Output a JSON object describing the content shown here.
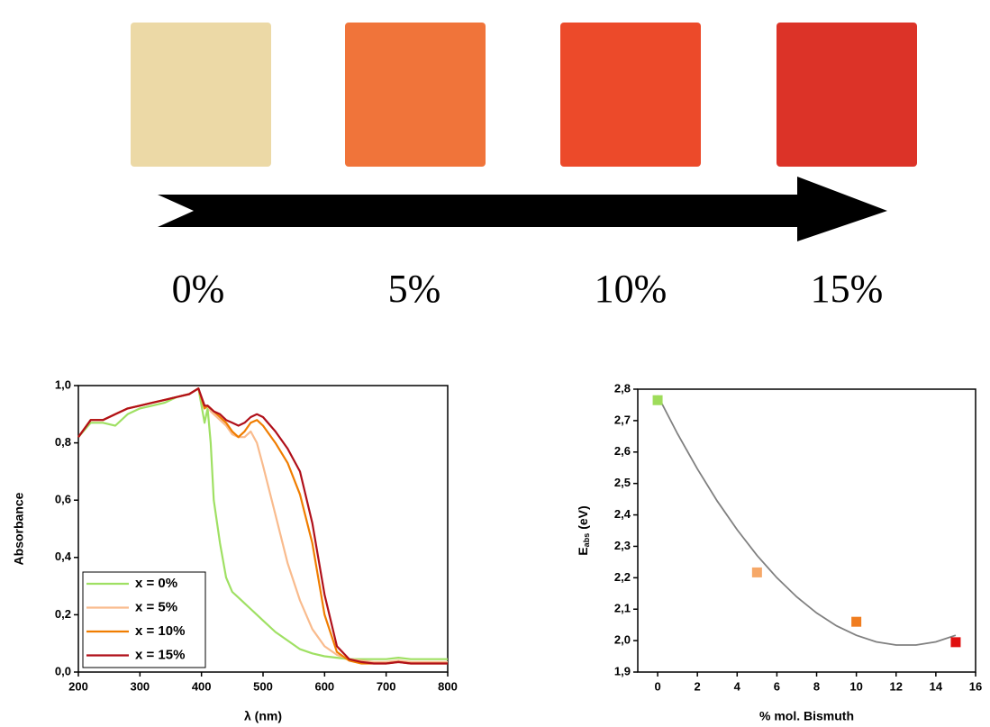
{
  "photo_panel": {
    "labels": [
      "0%",
      "5%",
      "10%",
      "15%"
    ],
    "colors": [
      "#ecd9a6",
      "#f0743a",
      "#ec4a2a",
      "#dc3328"
    ]
  },
  "chart_data": [
    {
      "type": "line",
      "xlabel": "λ (nm)",
      "ylabel": "Absorbance",
      "x": [
        200,
        220,
        240,
        260,
        280,
        300,
        320,
        340,
        360,
        380,
        395,
        405,
        410,
        415,
        420,
        430,
        440,
        450,
        460,
        470,
        480,
        490,
        500,
        520,
        540,
        560,
        580,
        600,
        620,
        640,
        660,
        680,
        700,
        720,
        740,
        760,
        780,
        800
      ],
      "xlim": [
        200,
        800
      ],
      "xticks": [
        200,
        300,
        400,
        500,
        600,
        700,
        800
      ],
      "ylim": [
        0,
        1
      ],
      "yticks": [
        {
          "value": 0,
          "label": "0,0"
        },
        {
          "value": 0.2,
          "label": "0,2"
        },
        {
          "value": 0.4,
          "label": "0,4"
        },
        {
          "value": 0.6,
          "label": "0,6"
        },
        {
          "value": 0.8,
          "label": "0,8"
        },
        {
          "value": 1,
          "label": "1,0"
        }
      ],
      "legend": "lower left",
      "series": [
        {
          "name": "x = 0%",
          "color": "#9fe063",
          "values": [
            0.82,
            0.87,
            0.87,
            0.86,
            0.9,
            0.92,
            0.93,
            0.94,
            0.96,
            0.97,
            0.99,
            0.87,
            0.92,
            0.8,
            0.6,
            0.45,
            0.33,
            0.28,
            0.26,
            0.24,
            0.22,
            0.2,
            0.18,
            0.14,
            0.11,
            0.08,
            0.065,
            0.055,
            0.05,
            0.045,
            0.045,
            0.045,
            0.045,
            0.05,
            0.045,
            0.045,
            0.045,
            0.045
          ]
        },
        {
          "name": "x = 5%",
          "color": "#f9bb8d",
          "values": [
            0.82,
            0.88,
            0.88,
            0.9,
            0.92,
            0.93,
            0.94,
            0.95,
            0.96,
            0.97,
            0.99,
            0.92,
            0.93,
            0.91,
            0.9,
            0.88,
            0.86,
            0.83,
            0.82,
            0.82,
            0.84,
            0.8,
            0.72,
            0.55,
            0.38,
            0.25,
            0.15,
            0.09,
            0.06,
            0.045,
            0.04,
            0.035,
            0.035,
            0.04,
            0.035,
            0.035,
            0.035,
            0.035
          ]
        },
        {
          "name": "x = 10%",
          "color": "#f07d00",
          "values": [
            0.82,
            0.88,
            0.88,
            0.9,
            0.92,
            0.93,
            0.94,
            0.95,
            0.96,
            0.97,
            0.99,
            0.92,
            0.93,
            0.92,
            0.91,
            0.89,
            0.87,
            0.84,
            0.82,
            0.84,
            0.87,
            0.88,
            0.86,
            0.8,
            0.73,
            0.62,
            0.45,
            0.2,
            0.07,
            0.04,
            0.03,
            0.03,
            0.03,
            0.035,
            0.03,
            0.03,
            0.03,
            0.03
          ]
        },
        {
          "name": "x = 15%",
          "color": "#b0101a",
          "values": [
            0.82,
            0.88,
            0.88,
            0.9,
            0.92,
            0.93,
            0.94,
            0.95,
            0.96,
            0.97,
            0.99,
            0.93,
            0.93,
            0.92,
            0.91,
            0.9,
            0.88,
            0.87,
            0.86,
            0.87,
            0.89,
            0.9,
            0.89,
            0.84,
            0.78,
            0.7,
            0.52,
            0.27,
            0.09,
            0.045,
            0.035,
            0.03,
            0.03,
            0.035,
            0.03,
            0.03,
            0.03,
            0.03
          ]
        }
      ]
    },
    {
      "type": "scatter",
      "xlabel": "% mol. Bismuth",
      "ylabel_parts": [
        "E",
        "abs",
        "(eV)"
      ],
      "x": [
        0,
        5,
        10,
        15
      ],
      "values": [
        2.765,
        2.217,
        2.06,
        1.995
      ],
      "colors": [
        "#9edc5a",
        "#f6a868",
        "#f07d20",
        "#e01010"
      ],
      "fit": {
        "color": "#808080",
        "x": [
          0,
          1,
          2,
          3,
          4,
          5,
          6,
          7,
          8,
          9,
          10,
          11,
          12,
          13,
          14,
          15
        ],
        "values": [
          2.78,
          2.658,
          2.546,
          2.444,
          2.353,
          2.271,
          2.2,
          2.139,
          2.088,
          2.047,
          2.017,
          1.996,
          1.986,
          1.986,
          1.996,
          2.017
        ]
      },
      "xlim": [
        -1,
        16
      ],
      "xticks": [
        0,
        2,
        4,
        6,
        8,
        10,
        12,
        14,
        16
      ],
      "ylim": [
        1.9,
        2.8
      ],
      "yticks": [
        {
          "value": 1.9,
          "label": "1,9"
        },
        {
          "value": 2.0,
          "label": "2,0"
        },
        {
          "value": 2.1,
          "label": "2,1"
        },
        {
          "value": 2.2,
          "label": "2,2"
        },
        {
          "value": 2.3,
          "label": "2,3"
        },
        {
          "value": 2.4,
          "label": "2,4"
        },
        {
          "value": 2.5,
          "label": "2,5"
        },
        {
          "value": 2.6,
          "label": "2,6"
        },
        {
          "value": 2.7,
          "label": "2,7"
        },
        {
          "value": 2.8,
          "label": "2,8"
        }
      ]
    }
  ]
}
